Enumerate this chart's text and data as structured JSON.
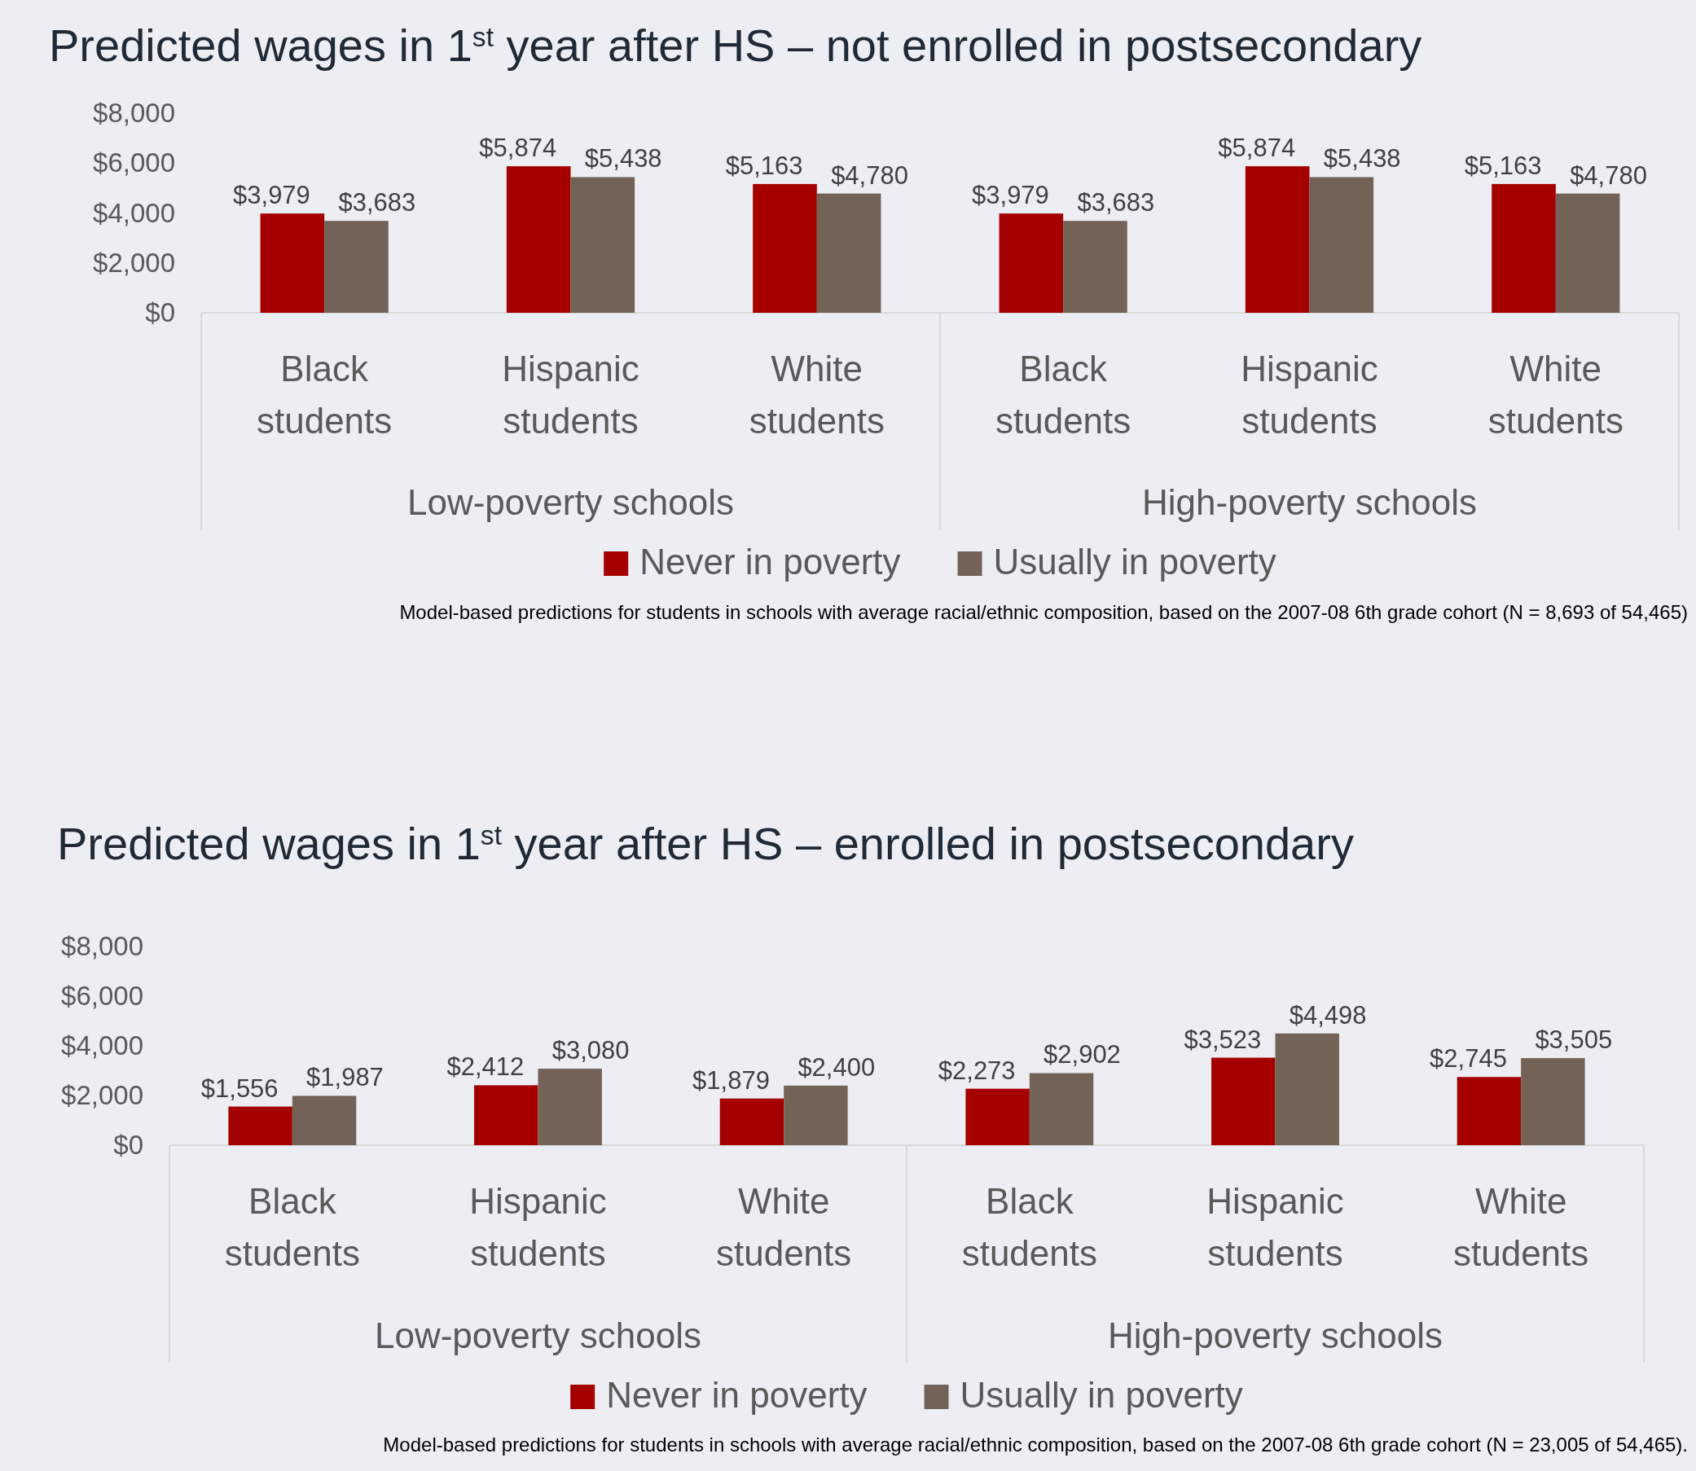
{
  "chart_data": [
    {
      "type": "bar",
      "title": "Predicted wages in 1$^{st}$ year after HS – not enrolled in postsecondary",
      "categories": [
        "Black students",
        "Hispanic students",
        "White students",
        "Black students",
        "Hispanic students",
        "White students"
      ],
      "series": [
        {
          "name": "Never in poverty",
          "color": "#a50000",
          "values": [
            3979,
            5874,
            5163,
            3979,
            5874,
            5163
          ],
          "value_labels": [
            "$3,979",
            "$5,874",
            "$5,163",
            "$3,979",
            "$5,874",
            "$5,163"
          ]
        },
        {
          "name": "Usually in poverty",
          "color": "#736357",
          "values": [
            3683,
            5438,
            4780,
            3683,
            5438,
            4780
          ],
          "value_labels": [
            "$3,683",
            "$5,438",
            "$4,780",
            "$3,683",
            "$5,438",
            "$4,780"
          ]
        }
      ],
      "ylim": [
        0,
        8000
      ],
      "yticks": [
        {
          "value": 0,
          "label": "$0"
        },
        {
          "value": 2000,
          "label": "$2,000"
        },
        {
          "value": 4000,
          "label": "$4,000"
        },
        {
          "value": 6000,
          "label": "$6,000"
        },
        {
          "value": 8000,
          "label": "$8,000"
        }
      ],
      "annotations": [
        "Low-poverty schools",
        "High-poverty schools",
        "Model-based predictions for students in schools with average racial/ethnic composition, based on the 2007-08 6th grade cohort (N = 8,693 of 54,465)"
      ],
      "legend": "bottom",
      "grid": false
    },
    {
      "type": "bar",
      "title": "Predicted wages in 1$^{st}$ year after HS – enrolled in postsecondary",
      "categories": [
        "Black students",
        "Hispanic students",
        "White students",
        "Black students",
        "Hispanic students",
        "White students"
      ],
      "series": [
        {
          "name": "Never in poverty",
          "color": "#a50000",
          "values": [
            1556,
            2412,
            1879,
            2273,
            3523,
            2745
          ],
          "value_labels": [
            "$1,556",
            "$2,412",
            "$1,879",
            "$2,273",
            "$3,523",
            "$2,745"
          ]
        },
        {
          "name": "Usually in poverty",
          "color": "#736357",
          "values": [
            1987,
            3080,
            2400,
            2902,
            4498,
            3505
          ],
          "value_labels": [
            "$1,987",
            "$3,080",
            "$2,400",
            "$2,902",
            "$4,498",
            "$3,505"
          ]
        }
      ],
      "ylim": [
        0,
        8000
      ],
      "yticks": [
        {
          "value": 0,
          "label": "$0"
        },
        {
          "value": 2000,
          "label": "$2,000"
        },
        {
          "value": 4000,
          "label": "$4,000"
        },
        {
          "value": 6000,
          "label": "$6,000"
        },
        {
          "value": 8000,
          "label": "$8,000"
        }
      ],
      "annotations": [
        "Low-poverty schools",
        "High-poverty schools",
        "Model-based predictions for students in schools with average racial/ethnic composition, based on the 2007-08 6th grade cohort (N = 23,005 of 54,465)."
      ],
      "legend": "bottom",
      "grid": false
    }
  ]
}
